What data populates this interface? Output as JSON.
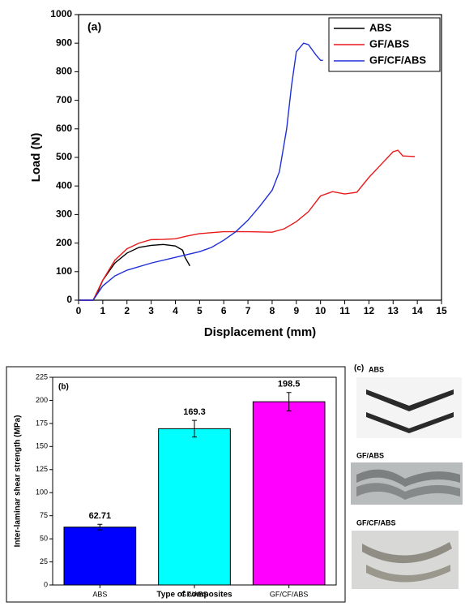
{
  "chart_data": [
    {
      "type": "line",
      "annotation": "(a)",
      "x_label": "Displacement (mm)",
      "y_label": "Load (N)",
      "xlim": [
        0,
        15
      ],
      "xticks": [
        0,
        1,
        2,
        3,
        4,
        5,
        6,
        7,
        8,
        9,
        10,
        11,
        12,
        13,
        14,
        15
      ],
      "ylim": [
        0,
        1000
      ],
      "yticks": [
        0,
        100,
        200,
        300,
        400,
        500,
        600,
        700,
        800,
        900,
        1000
      ],
      "legend": "top-right",
      "series": [
        {
          "name": "ABS",
          "color": "#000000",
          "x": [
            0,
            0.6,
            0.8,
            1.0,
            1.5,
            2,
            2.5,
            3,
            3.5,
            4,
            4.3,
            4.4,
            4.6
          ],
          "values": [
            0,
            0,
            30,
            70,
            130,
            165,
            185,
            192,
            195,
            190,
            175,
            150,
            120
          ]
        },
        {
          "name": "GF/ABS",
          "color": "#e8191b",
          "x": [
            0,
            0.6,
            0.8,
            1,
            1.5,
            2,
            2.5,
            3,
            3.5,
            4,
            4.5,
            5,
            6,
            7,
            8,
            8.5,
            9,
            9.5,
            10,
            10.5,
            11,
            11.5,
            12,
            12.5,
            13,
            13.2,
            13.4,
            13.9
          ],
          "values": [
            0,
            0,
            35,
            70,
            140,
            180,
            200,
            212,
            213,
            215,
            225,
            233,
            240,
            240,
            238,
            250,
            275,
            310,
            365,
            380,
            372,
            378,
            430,
            475,
            520,
            525,
            505,
            503
          ]
        },
        {
          "name": "GF/CF/ABS",
          "color": "#1f2fd8",
          "x": [
            0,
            0.6,
            0.8,
            1,
            1.5,
            2,
            3,
            4,
            5,
            5.5,
            6,
            6.5,
            7,
            7.5,
            8,
            8.3,
            8.6,
            8.8,
            9,
            9.3,
            9.5,
            9.8,
            10,
            10.1
          ],
          "values": [
            0,
            0,
            25,
            50,
            85,
            105,
            130,
            150,
            170,
            185,
            210,
            240,
            280,
            330,
            385,
            450,
            600,
            750,
            870,
            900,
            895,
            860,
            840,
            840
          ]
        }
      ]
    },
    {
      "type": "bar",
      "annotation": "(b)",
      "x_label": "Type of composites",
      "y_label": "Inter-laminar shear strength (MPa)",
      "categories": [
        "ABS",
        "GF/ABS",
        "GF/CF/ABS"
      ],
      "values": [
        62.71,
        169.3,
        198.5
      ],
      "errors": [
        3,
        9,
        10
      ],
      "colors": [
        "#0000ff",
        "#00ffff",
        "#ff00ff"
      ],
      "ylim": [
        0,
        225
      ],
      "yticks": [
        0,
        25,
        50,
        75,
        100,
        125,
        150,
        175,
        200,
        225
      ]
    }
  ],
  "photos": {
    "label": "(c)",
    "samples": [
      "ABS",
      "GF/ABS",
      "GF/CF/ABS"
    ]
  }
}
